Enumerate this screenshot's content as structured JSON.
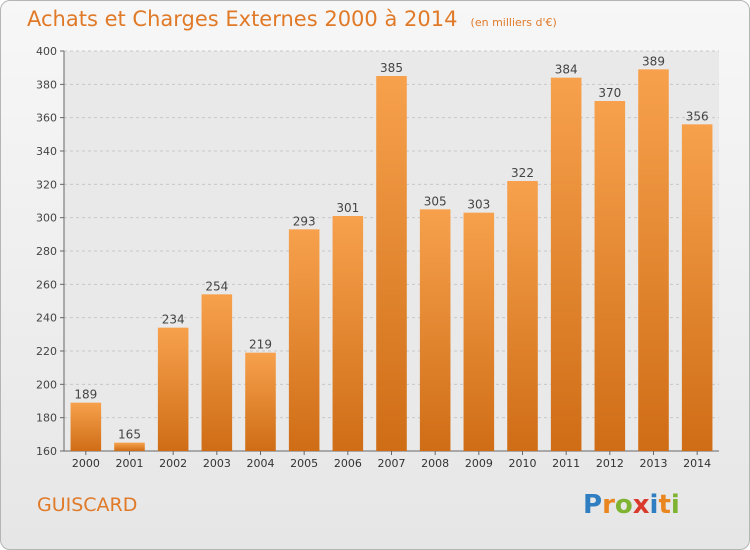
{
  "header": {
    "title": "Achats et Charges Externes 2000 à 2014",
    "unit": "(en milliers d'€)"
  },
  "footer": {
    "city": "GUISCARD",
    "logo_letters": [
      "P",
      "r",
      "o",
      "x",
      "i",
      "t",
      "i"
    ],
    "logo_colors": [
      "#2f7ec1",
      "#e9861f",
      "#7fb332",
      "#d93a2b",
      "#2f7ec1",
      "#e9861f",
      "#7fb332"
    ]
  },
  "chart_data": {
    "type": "bar",
    "title": "Achats et Charges Externes 2000 à 2014",
    "subtitle": "(en milliers d'€)",
    "categories": [
      "2000",
      "2001",
      "2002",
      "2003",
      "2004",
      "2005",
      "2006",
      "2007",
      "2008",
      "2009",
      "2010",
      "2011",
      "2012",
      "2013",
      "2014"
    ],
    "values": [
      189,
      165,
      234,
      254,
      219,
      293,
      301,
      385,
      305,
      303,
      322,
      384,
      370,
      389,
      356
    ],
    "ylim": [
      160,
      400
    ],
    "yticks": [
      160,
      180,
      200,
      220,
      240,
      260,
      280,
      300,
      320,
      340,
      360,
      380,
      400
    ],
    "grid": true,
    "bar_color_light": "#f7a14d",
    "bar_color_dark": "#cf6d16",
    "label_color": "#444444"
  }
}
